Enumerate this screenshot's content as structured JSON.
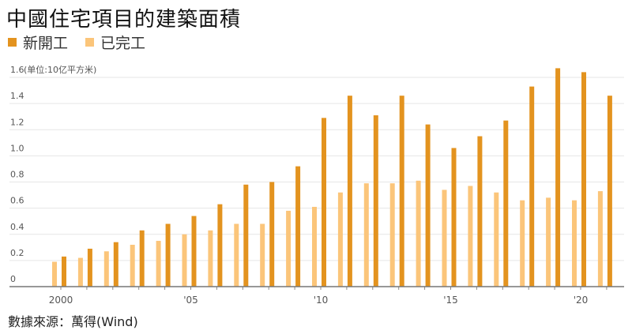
{
  "chart_data": {
    "type": "bar",
    "title": "中國住宅項目的建築面積",
    "ylabel": "(单位:10亿平方米)",
    "ylim": [
      0,
      1.6
    ],
    "yticks": [
      "0",
      "0.2",
      "0.4",
      "0.6",
      "0.8",
      "1.0",
      "1.2",
      "1.4",
      "1.6"
    ],
    "grid": true,
    "legend": "top-left",
    "categories": [
      2000,
      2001,
      2002,
      2003,
      2004,
      2005,
      2006,
      2007,
      2008,
      2009,
      2010,
      2011,
      2012,
      2013,
      2014,
      2015,
      2016,
      2017,
      2018,
      2019,
      2020,
      2021
    ],
    "xticks": [
      {
        "year": 2000,
        "label": "2000"
      },
      {
        "year": 2005,
        "label": "'05"
      },
      {
        "year": 2010,
        "label": "'10"
      },
      {
        "year": 2015,
        "label": "'15"
      },
      {
        "year": 2020,
        "label": "'20"
      }
    ],
    "series": [
      {
        "name": "已完工",
        "color": "#FBC57A",
        "values": [
          0.19,
          0.22,
          0.27,
          0.32,
          0.35,
          0.4,
          0.43,
          0.48,
          0.48,
          0.58,
          0.61,
          0.72,
          0.79,
          0.79,
          0.81,
          0.74,
          0.77,
          0.72,
          0.66,
          0.68,
          0.66,
          0.73
        ]
      },
      {
        "name": "新開工",
        "color": "#E3931F",
        "values": [
          0.23,
          0.29,
          0.34,
          0.43,
          0.48,
          0.54,
          0.63,
          0.78,
          0.8,
          0.92,
          1.29,
          1.46,
          1.31,
          1.46,
          1.24,
          1.06,
          1.15,
          1.27,
          1.53,
          1.67,
          1.64,
          1.46
        ]
      }
    ]
  },
  "source": "數據來源：萬得(Wind)"
}
